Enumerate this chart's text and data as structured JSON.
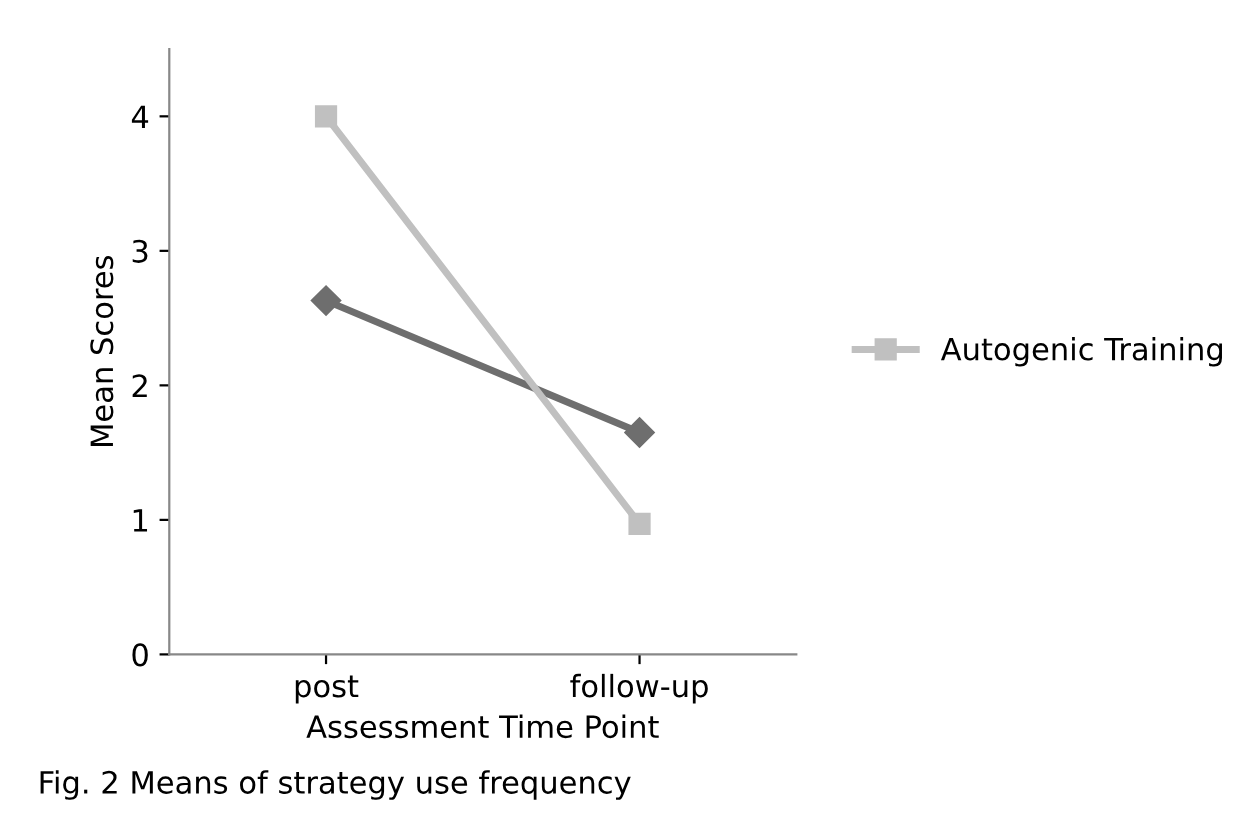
{
  "chart_data": {
    "type": "line",
    "xlabel": "Assessment Time Point",
    "ylabel": "Mean Scores",
    "categories": [
      "post",
      "follow-up"
    ],
    "series": [
      {
        "color": "#6e6e6e",
        "marker": "diamond",
        "values": [
          2.63,
          1.65
        ]
      },
      {
        "name": "Autogenic Training",
        "color": "#c0c0c0",
        "marker": "square",
        "values": [
          4.0,
          0.97
        ]
      }
    ],
    "ylim": [
      0,
      4.5
    ],
    "yticks": [
      0,
      1,
      2,
      3,
      4
    ],
    "grid": false,
    "legend": "right",
    "annotations": [
      "Fig. 2 Means of strategy use frequency"
    ]
  }
}
